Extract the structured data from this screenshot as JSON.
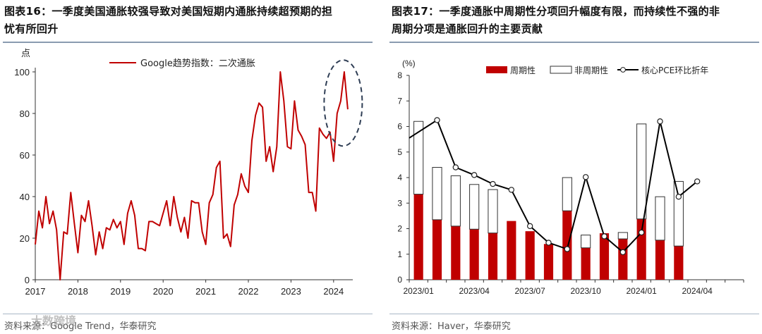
{
  "left": {
    "title_line1": "图表16：一季度美国通胀较强导致对美国短期内通胀持续超预期的担",
    "title_line2": "忧有所回升",
    "unit": "点",
    "source": "资料来源：Google Trend，华泰研究"
  },
  "right": {
    "title_line1": "图表17：一季度通胀中周期性分项回升幅度有限，而持续性不强的非",
    "title_line2": "周期分项是通胀回升的主要贡献",
    "unit": "(%)",
    "source": "资料来源：Haver，华泰研究"
  },
  "watermark": "大数跨境",
  "colors": {
    "red": "#c00000",
    "dark": "#000000",
    "ellipse": "#2f3e55",
    "rule": "#8a9bb0"
  },
  "chart_data": [
    {
      "type": "line",
      "title": "Google趋势指数：二次通胀",
      "ylabel": "点",
      "ylim": [
        0,
        100
      ],
      "yticks": [
        0,
        20,
        40,
        60,
        80,
        100
      ],
      "xlim": [
        2017,
        2024.45
      ],
      "xticks": [
        2017,
        2018,
        2019,
        2020,
        2021,
        2022,
        2023,
        2024
      ],
      "legend": "top-center",
      "annotation": "dashed ellipse highlighting 2024 peak",
      "series": [
        {
          "name": "Google趋势指数：二次通胀",
          "x": [
            2017.0,
            2017.083,
            2017.167,
            2017.25,
            2017.333,
            2017.417,
            2017.5,
            2017.583,
            2017.667,
            2017.75,
            2017.833,
            2017.917,
            2018.0,
            2018.083,
            2018.167,
            2018.25,
            2018.333,
            2018.417,
            2018.5,
            2018.583,
            2018.667,
            2018.75,
            2018.833,
            2018.917,
            2019.0,
            2019.083,
            2019.167,
            2019.25,
            2019.333,
            2019.417,
            2019.5,
            2019.583,
            2019.667,
            2019.75,
            2019.833,
            2019.917,
            2020.0,
            2020.083,
            2020.167,
            2020.25,
            2020.333,
            2020.417,
            2020.5,
            2020.583,
            2020.667,
            2020.75,
            2020.833,
            2020.917,
            2021.0,
            2021.083,
            2021.167,
            2021.25,
            2021.333,
            2021.417,
            2021.5,
            2021.583,
            2021.667,
            2021.75,
            2021.833,
            2021.917,
            2022.0,
            2022.083,
            2022.167,
            2022.25,
            2022.333,
            2022.417,
            2022.5,
            2022.583,
            2022.667,
            2022.75,
            2022.833,
            2022.917,
            2023.0,
            2023.083,
            2023.167,
            2023.25,
            2023.333,
            2023.417,
            2023.5,
            2023.583,
            2023.667,
            2023.75,
            2023.833,
            2023.917,
            2024.0,
            2024.083,
            2024.167,
            2024.25,
            2024.333
          ],
          "y": [
            17,
            33,
            25,
            40,
            27,
            33,
            24,
            0,
            23,
            22,
            42,
            27,
            13,
            31,
            28,
            38,
            26,
            12,
            23,
            15,
            25,
            24,
            29,
            25,
            28,
            17,
            32,
            38,
            31,
            15,
            15,
            14,
            28,
            28,
            27,
            26,
            32,
            38,
            26,
            40,
            30,
            23,
            30,
            20,
            38,
            37,
            37,
            23,
            17,
            37,
            41,
            54,
            57,
            20,
            22,
            16,
            36,
            41,
            51,
            45,
            42,
            67,
            79,
            85,
            83,
            57,
            64,
            52,
            64,
            100,
            86,
            64,
            63,
            86,
            72,
            69,
            65,
            42,
            42,
            33,
            73,
            70,
            68,
            71,
            57,
            80,
            86,
            100,
            82
          ]
        }
      ]
    },
    {
      "type": "bar",
      "stacked": true,
      "ylabel": "(%)",
      "ylim": [
        0,
        8
      ],
      "yticks": [
        0,
        1,
        2,
        3,
        4,
        5,
        6,
        7,
        8
      ],
      "xtick_labels": [
        "2023/01",
        "2023/04",
        "2023/07",
        "2023/10",
        "2024/01",
        "2024/04"
      ],
      "legend": "top",
      "categories": [
        "2023/01",
        "2023/02",
        "2023/03",
        "2023/04",
        "2023/05",
        "2023/06",
        "2023/07",
        "2023/08",
        "2023/09",
        "2023/10",
        "2023/11",
        "2023/12",
        "2024/01",
        "2024/02",
        "2024/03",
        "2024/04",
        "2024/05",
        "2024/06"
      ],
      "series": [
        {
          "name": "周期性",
          "kind": "bar",
          "values": [
            3.35,
            2.35,
            2.1,
            1.98,
            1.83,
            2.3,
            1.9,
            1.4,
            2.7,
            1.25,
            1.82,
            1.6,
            2.38,
            1.55,
            1.32,
            null,
            null,
            null
          ]
        },
        {
          "name": "非周期性",
          "kind": "bar",
          "values": [
            2.85,
            2.05,
            1.97,
            1.75,
            1.7,
            0,
            0,
            0,
            1.3,
            0.5,
            0,
            0.25,
            3.72,
            1.7,
            2.53,
            null,
            null,
            null
          ]
        },
        {
          "name": "核心PCE环比折年",
          "kind": "line",
          "values": [
            null,
            6.25,
            4.4,
            4.1,
            3.75,
            3.52,
            2.1,
            1.45,
            1.2,
            4.02,
            1.7,
            1.08,
            1.85,
            6.2,
            3.25,
            3.85,
            null,
            null
          ]
        }
      ],
      "line_start": 5.55
    }
  ]
}
